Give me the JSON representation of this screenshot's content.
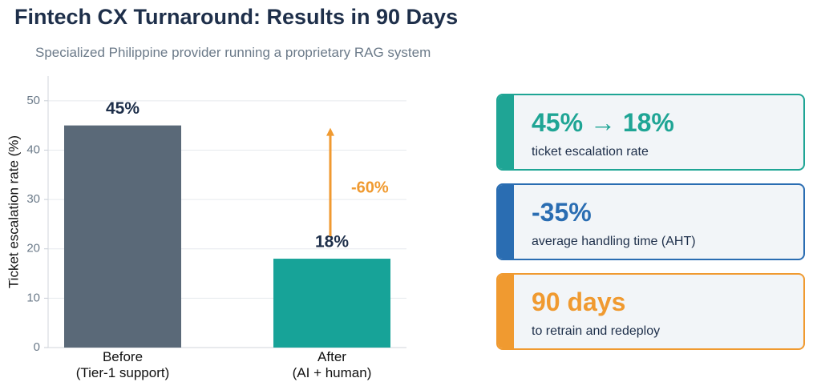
{
  "header": {
    "title": "Fintech CX Turnaround: Results in 90 Days",
    "subtitle": "Specialized Philippine provider running a proprietary RAG system"
  },
  "chart_data": {
    "type": "bar",
    "categories": [
      "Before\n(Tier-1 support)",
      "After\n(AI + human)"
    ],
    "values": [
      45,
      18
    ],
    "value_labels": [
      "45%",
      "18%"
    ],
    "colors": [
      "#5a6978",
      "#17a398"
    ],
    "ylabel": "Ticket escalation rate (%)",
    "ylim": [
      0,
      55
    ],
    "yticks": [
      0,
      10,
      20,
      30,
      40,
      50
    ],
    "grid": true,
    "annotation": {
      "text": "-60%",
      "color": "#f09a30"
    }
  },
  "cards": [
    {
      "value": "45% → 18%",
      "label": "ticket escalation rate",
      "color": "#1fa595"
    },
    {
      "value": "-35%",
      "label": "average handling time (AHT)",
      "color": "#2a6db2"
    },
    {
      "value": "90 days",
      "label": "to retrain and redeploy",
      "color": "#f09a30"
    }
  ]
}
